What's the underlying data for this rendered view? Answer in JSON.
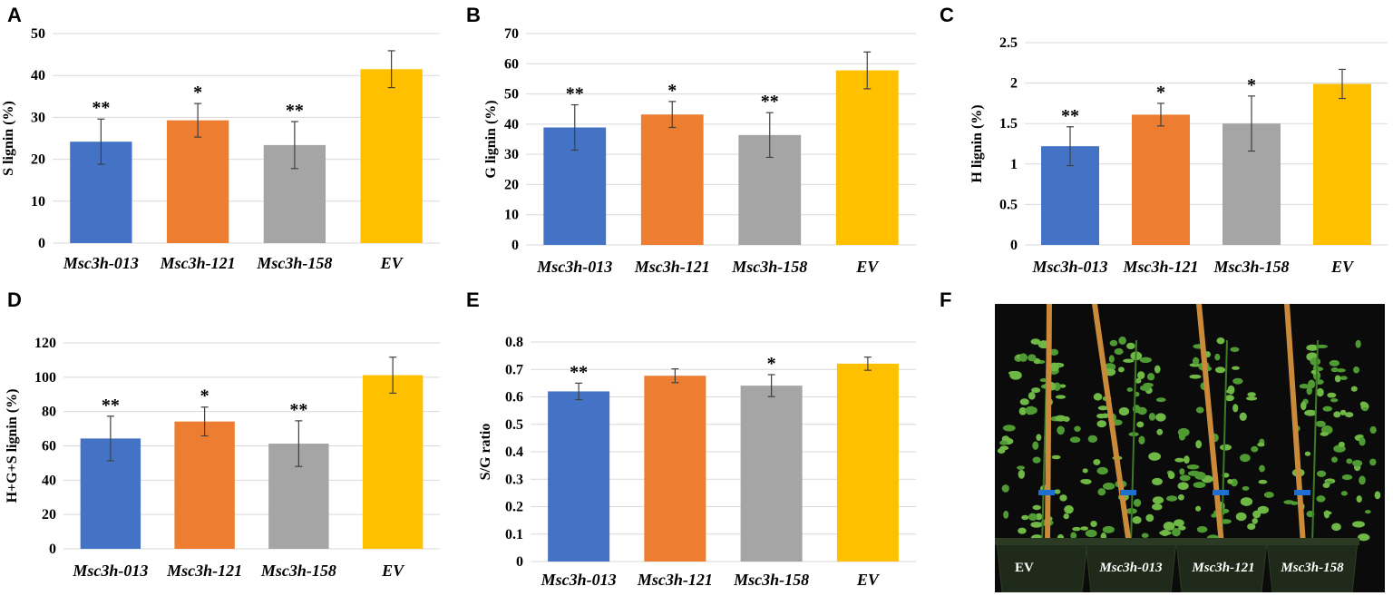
{
  "colors": {
    "Msc3h-013": "#4472C4",
    "Msc3h-121": "#ED7D31",
    "Msc3h-158": "#A5A5A5",
    "EV": "#FFC000"
  },
  "chart_data": [
    {
      "panel": "A",
      "type": "bar",
      "categories": [
        "Msc3h-013",
        "Msc3h-121",
        "Msc3h-158",
        "EV"
      ],
      "values": [
        24.2,
        29.3,
        23.4,
        41.5
      ],
      "errors": [
        5.4,
        4.0,
        5.6,
        4.4
      ],
      "significance": [
        "**",
        "*",
        "**",
        ""
      ],
      "ylabel": "S lignin (%)",
      "ylim": [
        0,
        50
      ],
      "yticks": [
        0,
        10,
        20,
        30,
        40,
        50
      ],
      "yticklabels": [
        "0",
        "10",
        "20",
        "30",
        "40",
        "50"
      ],
      "grid": true
    },
    {
      "panel": "B",
      "type": "bar",
      "categories": [
        "Msc3h-013",
        "Msc3h-121",
        "Msc3h-158",
        "EV"
      ],
      "values": [
        38.9,
        43.2,
        36.4,
        57.8
      ],
      "errors": [
        7.5,
        4.3,
        7.4,
        6.1
      ],
      "significance": [
        "**",
        "*",
        "**",
        ""
      ],
      "ylabel": "G  lignin (%)",
      "ylim": [
        0,
        70
      ],
      "yticks": [
        0,
        10,
        20,
        30,
        40,
        50,
        60,
        70
      ],
      "yticklabels": [
        "0",
        "10",
        "20",
        "30",
        "40",
        "50",
        "60",
        "70"
      ],
      "grid": true
    },
    {
      "panel": "C",
      "type": "bar",
      "categories": [
        "Msc3h-013",
        "Msc3h-121",
        "Msc3h-158",
        "EV"
      ],
      "values": [
        1.22,
        1.61,
        1.5,
        1.99
      ],
      "errors": [
        0.24,
        0.14,
        0.34,
        0.18
      ],
      "significance": [
        "**",
        "*",
        "*",
        ""
      ],
      "ylabel": "H lignin (%)",
      "ylim": [
        0,
        2.5
      ],
      "yticks": [
        0,
        0.5,
        1,
        1.5,
        2,
        2.5
      ],
      "yticklabels": [
        "0",
        "0.5",
        "1",
        "1.5",
        "2",
        "2.5"
      ],
      "grid": true
    },
    {
      "panel": "D",
      "type": "bar",
      "categories": [
        "Msc3h-013",
        "Msc3h-121",
        "Msc3h-158",
        "EV"
      ],
      "values": [
        64.3,
        74.2,
        61.3,
        101.2
      ],
      "errors": [
        13.0,
        8.4,
        13.3,
        10.5
      ],
      "significance": [
        "**",
        "*",
        "**",
        ""
      ],
      "ylabel": "H+G+S lignin (%)",
      "ylim": [
        0,
        120
      ],
      "yticks": [
        0,
        20,
        40,
        60,
        80,
        100,
        120
      ],
      "yticklabels": [
        "0",
        "20",
        "40",
        "60",
        "80",
        "100",
        "120"
      ],
      "grid": true
    },
    {
      "panel": "E",
      "type": "bar",
      "categories": [
        "Msc3h-013",
        "Msc3h-121",
        "Msc3h-158",
        "EV"
      ],
      "values": [
        0.62,
        0.677,
        0.641,
        0.721
      ],
      "errors": [
        0.03,
        0.025,
        0.04,
        0.024
      ],
      "significance": [
        "**",
        "",
        "*",
        ""
      ],
      "ylabel": "S/G ratio",
      "ylim": [
        0,
        0.8
      ],
      "yticks": [
        0,
        0.1,
        0.2,
        0.3,
        0.4,
        0.5,
        0.6,
        0.7,
        0.8
      ],
      "yticklabels": [
        "0",
        "0.1",
        "0.2",
        "0.3",
        "0.4",
        "0.5",
        "0.6",
        "0.7",
        "0.8"
      ],
      "grid": true
    }
  ],
  "photo": {
    "panel": "F",
    "labels": [
      "EV",
      "Msc3h-013",
      "Msc3h-121",
      "Msc3h-158"
    ]
  }
}
